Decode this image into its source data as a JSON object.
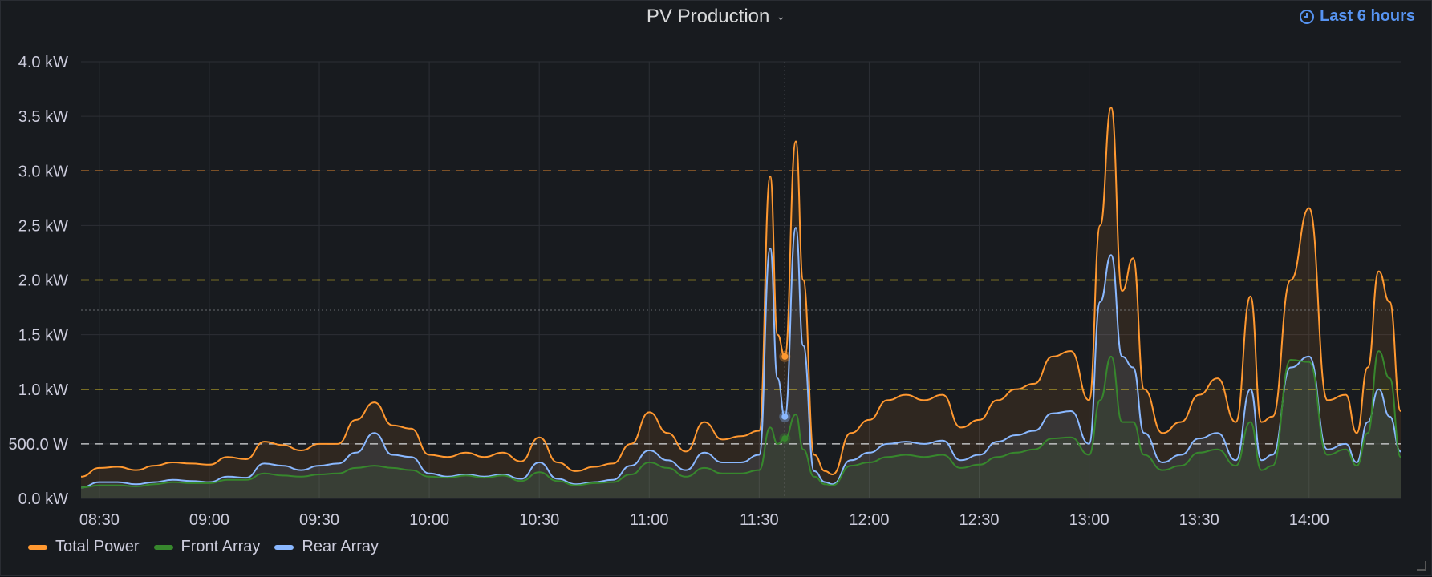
{
  "panel": {
    "title": "PV Production",
    "time_range": "Last 6 hours"
  },
  "chart_data": {
    "type": "area",
    "title": "PV Production",
    "x_unit": "time",
    "x_ticks": [
      "08:30",
      "09:00",
      "09:30",
      "10:00",
      "10:30",
      "11:00",
      "11:30",
      "12:00",
      "12:30",
      "13:00",
      "13:30",
      "14:00"
    ],
    "xlim": [
      "08:25",
      "14:25"
    ],
    "y_ticks": [
      "0.0 kW",
      "500.0 W",
      "1.0 kW",
      "1.5 kW",
      "2.0 kW",
      "2.5 kW",
      "3.0 kW",
      "3.5 kW",
      "4.0 kW"
    ],
    "ylim": [
      0,
      4000
    ],
    "y_unit": "W",
    "thresholds": [
      {
        "value": 500,
        "color": "#d8d9da"
      },
      {
        "value": 1000,
        "color": "#fade2a"
      },
      {
        "value": 2000,
        "color": "#fade2a"
      },
      {
        "value": 3000,
        "color": "#ff9830"
      }
    ],
    "hover": {
      "time": "11:37",
      "values": {
        "Total Power": 1300,
        "Rear Array": 750,
        "Front Array": 550
      }
    },
    "grid": true,
    "legend": "bottom-left",
    "x": [
      "08:25",
      "08:30",
      "08:35",
      "08:40",
      "08:45",
      "08:50",
      "08:55",
      "09:00",
      "09:05",
      "09:10",
      "09:15",
      "09:20",
      "09:25",
      "09:30",
      "09:35",
      "09:40",
      "09:45",
      "09:50",
      "09:55",
      "10:00",
      "10:05",
      "10:10",
      "10:15",
      "10:20",
      "10:25",
      "10:30",
      "10:35",
      "10:40",
      "10:45",
      "10:50",
      "10:55",
      "11:00",
      "11:05",
      "11:10",
      "11:15",
      "11:20",
      "11:25",
      "11:30",
      "11:33",
      "11:35",
      "11:37",
      "11:40",
      "11:42",
      "11:45",
      "11:48",
      "11:50",
      "11:55",
      "12:00",
      "12:05",
      "12:10",
      "12:15",
      "12:20",
      "12:25",
      "12:30",
      "12:35",
      "12:40",
      "12:45",
      "12:50",
      "12:55",
      "13:00",
      "13:03",
      "13:06",
      "13:09",
      "13:12",
      "13:15",
      "13:20",
      "13:25",
      "13:30",
      "13:35",
      "13:40",
      "13:44",
      "13:47",
      "13:50",
      "13:55",
      "14:00",
      "14:05",
      "14:10",
      "14:13",
      "14:16",
      "14:19",
      "14:22",
      "14:25"
    ],
    "series": [
      {
        "name": "Total Power",
        "color": "#ff9830",
        "values": [
          200,
          280,
          290,
          260,
          300,
          330,
          320,
          310,
          380,
          360,
          520,
          490,
          440,
          500,
          500,
          720,
          880,
          670,
          640,
          400,
          380,
          420,
          380,
          420,
          340,
          560,
          330,
          250,
          290,
          320,
          500,
          790,
          600,
          430,
          700,
          540,
          570,
          620,
          2950,
          1500,
          1300,
          3270,
          2000,
          400,
          250,
          220,
          600,
          720,
          900,
          950,
          900,
          950,
          650,
          720,
          900,
          1000,
          1050,
          1300,
          1350,
          900,
          2500,
          3580,
          1900,
          2200,
          1000,
          600,
          700,
          950,
          1100,
          700,
          1850,
          700,
          750,
          2000,
          2660,
          900,
          950,
          600,
          1200,
          2080,
          1800,
          800
        ]
      },
      {
        "name": "Rear Array",
        "color": "#8ab8ff",
        "values": [
          100,
          150,
          150,
          130,
          150,
          170,
          160,
          150,
          200,
          190,
          320,
          300,
          260,
          300,
          320,
          420,
          600,
          400,
          380,
          230,
          200,
          220,
          200,
          220,
          180,
          330,
          180,
          130,
          150,
          170,
          300,
          440,
          350,
          260,
          420,
          330,
          330,
          400,
          2290,
          1100,
          750,
          2480,
          1400,
          250,
          150,
          130,
          350,
          420,
          500,
          520,
          500,
          530,
          350,
          400,
          520,
          580,
          620,
          780,
          800,
          500,
          1800,
          2230,
          1300,
          1200,
          600,
          330,
          400,
          550,
          600,
          350,
          1000,
          350,
          400,
          1200,
          1300,
          450,
          500,
          330,
          700,
          1000,
          750,
          430
        ]
      },
      {
        "name": "Front Array",
        "color": "#37872d",
        "values": [
          100,
          120,
          120,
          110,
          130,
          150,
          140,
          140,
          170,
          170,
          230,
          210,
          200,
          220,
          230,
          280,
          300,
          280,
          260,
          200,
          190,
          210,
          190,
          210,
          160,
          240,
          160,
          120,
          140,
          150,
          220,
          330,
          280,
          200,
          280,
          230,
          230,
          260,
          650,
          500,
          550,
          770,
          450,
          200,
          130,
          120,
          300,
          330,
          380,
          400,
          380,
          400,
          280,
          310,
          380,
          420,
          450,
          550,
          560,
          400,
          900,
          1300,
          700,
          700,
          400,
          260,
          300,
          420,
          450,
          300,
          700,
          260,
          300,
          1270,
          1250,
          400,
          450,
          300,
          600,
          1350,
          1100,
          380
        ]
      }
    ]
  },
  "legend": {
    "total": "Total Power",
    "front": "Front Array",
    "rear": "Rear Array"
  },
  "colors": {
    "total": "#ff9830",
    "front": "#37872d",
    "rear": "#8ab8ff"
  }
}
